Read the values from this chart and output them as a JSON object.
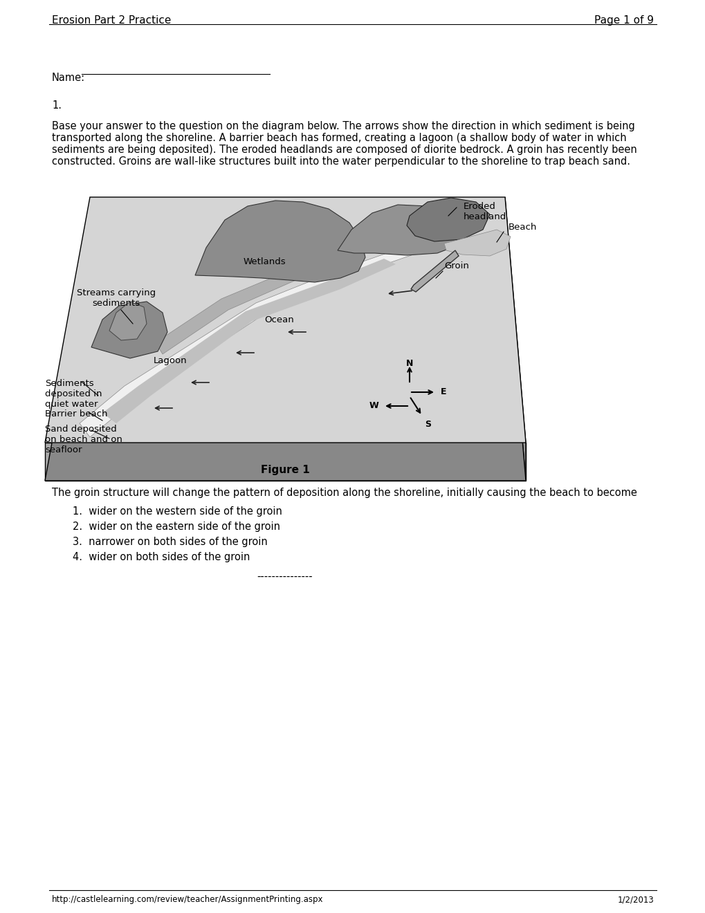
{
  "header_left": "Erosion Part 2 Practice",
  "header_right": "Page 1 of 9",
  "footer_left": "http://castlelearning.com/review/teacher/AssignmentPrinting.aspx",
  "footer_right": "1/2/2013",
  "name_label": "Name:",
  "question_number": "1.",
  "lines_body": [
    "Base your answer to the question on the diagram below. The arrows show the direction in which sediment is being",
    "transported along the shoreline. A barrier beach has formed, creating a lagoon (a shallow body of water in which",
    "sediments are being deposited). The eroded headlands are composed of diorite bedrock. A groin has recently been",
    "constructed. Groins are wall-like structures built into the water perpendicular to the shoreline to trap beach sand."
  ],
  "figure_caption": "Figure 1",
  "question_text": "The groin structure will change the pattern of deposition along the shoreline, initially causing the beach to become",
  "options": [
    "wider on the western side of the groin",
    "wider on the eastern side of the groin",
    "narrower on both sides of the groin",
    "wider on both sides of the groin"
  ],
  "separator": "---------------",
  "bg_color": "#ffffff",
  "text_color": "#000000",
  "font_size_header": 11,
  "font_size_body": 10.5,
  "font_size_label": 9.5
}
